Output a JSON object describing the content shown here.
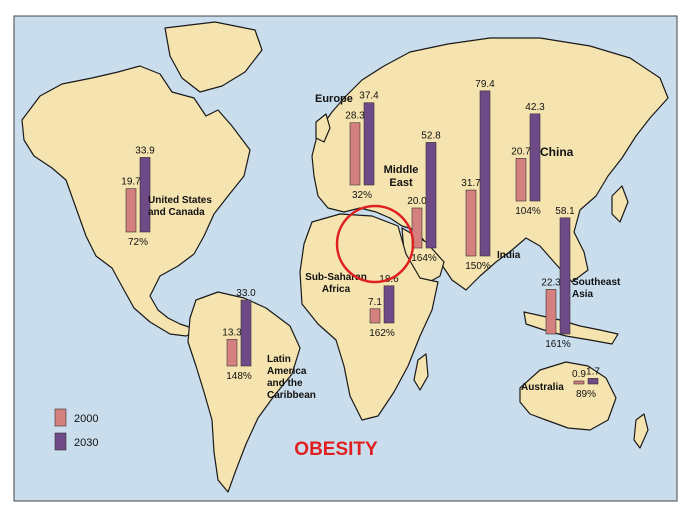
{
  "title": "OBESITY",
  "legend": [
    {
      "year": "2000",
      "color": "#d4807e"
    },
    {
      "year": "2030",
      "color": "#6e4a86"
    }
  ],
  "colors": {
    "ocean": "#c9ddec",
    "land": "#f6e4b0",
    "coast": "#1a1a1a",
    "title": "#e02020",
    "circle": "#e02020"
  },
  "chart_data": {
    "type": "bar",
    "title": "OBESITY",
    "series_names": [
      "2000",
      "2030"
    ],
    "regions": [
      {
        "name": "United States and Canada",
        "values": [
          19.7,
          33.9
        ],
        "v2000": "19.7",
        "v2030": "33.9",
        "change": "72%"
      },
      {
        "name": "Latin America and the Caribbean",
        "values": [
          13.3,
          33.0
        ],
        "v2000": "13.3",
        "v2030": "33.0",
        "change": "148%"
      },
      {
        "name": "Europe",
        "values": [
          28.3,
          37.4
        ],
        "v2000": "28.3",
        "v2030": "37.4",
        "change": "32%"
      },
      {
        "name": "Middle East",
        "values": [
          20.0,
          52.8
        ],
        "v2000": "20.0",
        "v2030": "52.8",
        "change": "164%"
      },
      {
        "name": "Sub-Saharan Africa",
        "values": [
          7.1,
          18.6
        ],
        "v2000": "7.1",
        "v2030": "18.6",
        "change": "162%"
      },
      {
        "name": "India",
        "values": [
          31.7,
          79.4
        ],
        "v2000": "31.7",
        "v2030": "79.4",
        "change": "150%"
      },
      {
        "name": "China",
        "values": [
          20.7,
          42.3
        ],
        "v2000": "20.7",
        "v2030": "42.3",
        "change": "104%"
      },
      {
        "name": "Southeast Asia",
        "values": [
          22.3,
          58.1
        ],
        "v2000": "22.3",
        "v2030": "58.1",
        "change": "161%"
      },
      {
        "name": "Australia",
        "values": [
          0.9,
          1.7
        ],
        "v2000": "0.9",
        "v2030": "1.7",
        "change": "89%"
      }
    ]
  },
  "labels": {
    "usa": [
      "United States",
      "and Canada"
    ],
    "latam": [
      "Latin",
      "America",
      "and the",
      "Caribbean"
    ],
    "europe": [
      "Europe"
    ],
    "mideast": [
      "Middle",
      "East"
    ],
    "ssa": [
      "Sub-Saharan",
      "Africa"
    ],
    "india": [
      "India"
    ],
    "china": [
      "China"
    ],
    "sea": [
      "Southeast",
      "Asia"
    ],
    "australia": [
      "Australia"
    ]
  }
}
